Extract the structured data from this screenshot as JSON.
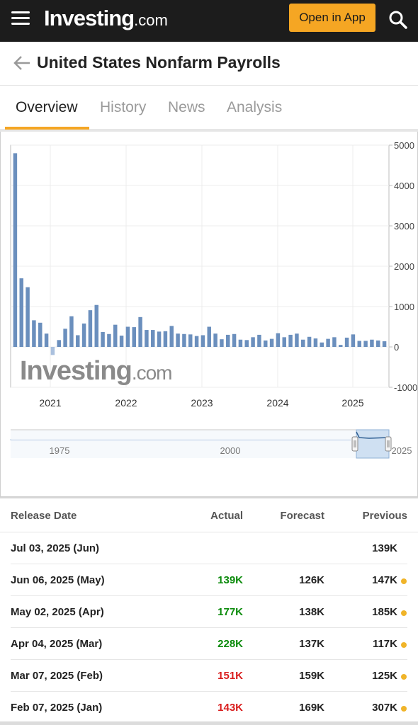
{
  "header": {
    "logo_brand": "Investing",
    "logo_tld": ".com",
    "open_app_label": "Open in App"
  },
  "page": {
    "title": "United States Nonfarm Payrolls"
  },
  "tabs": [
    {
      "label": "Overview",
      "active": true
    },
    {
      "label": "History",
      "active": false
    },
    {
      "label": "News",
      "active": false
    },
    {
      "label": "Analysis",
      "active": false
    }
  ],
  "colors": {
    "accent": "#f5a623",
    "bar": "#6b8fbd",
    "up": "#0a8a0a",
    "down": "#d91e1e"
  },
  "chart_data": {
    "type": "bar",
    "watermark": "Investing.com",
    "x_ticks": [
      "2021",
      "2022",
      "2023",
      "2024",
      "2025"
    ],
    "y_ticks": [
      "5000",
      "4000",
      "3000",
      "2000",
      "1000",
      "0",
      "-1000"
    ],
    "ylim": [
      -1000,
      5000
    ],
    "grid": true,
    "values": [
      4800,
      1700,
      1480,
      660,
      600,
      330,
      -200,
      170,
      450,
      760,
      290,
      580,
      910,
      1040,
      370,
      320,
      550,
      280,
      500,
      490,
      740,
      420,
      420,
      380,
      390,
      520,
      330,
      320,
      310,
      270,
      290,
      500,
      330,
      190,
      300,
      320,
      180,
      170,
      240,
      300,
      160,
      200,
      340,
      240,
      300,
      330,
      180,
      250,
      210,
      110,
      200,
      240,
      50,
      230,
      310,
      150,
      150,
      180,
      160,
      140
    ],
    "navigator": {
      "ticks": [
        "1975",
        "2000",
        "2025"
      ]
    }
  },
  "table": {
    "headers": {
      "date": "Release Date",
      "actual": "Actual",
      "forecast": "Forecast",
      "previous": "Previous"
    },
    "rows": [
      {
        "date": "Jul 03, 2025 (Jun)",
        "actual": "",
        "actual_trend": "",
        "forecast": "",
        "previous": "139K",
        "revised": false
      },
      {
        "date": "Jun 06, 2025 (May)",
        "actual": "139K",
        "actual_trend": "up",
        "forecast": "126K",
        "previous": "147K",
        "revised": true
      },
      {
        "date": "May 02, 2025 (Apr)",
        "actual": "177K",
        "actual_trend": "up",
        "forecast": "138K",
        "previous": "185K",
        "revised": true
      },
      {
        "date": "Apr 04, 2025 (Mar)",
        "actual": "228K",
        "actual_trend": "up",
        "forecast": "137K",
        "previous": "117K",
        "revised": true
      },
      {
        "date": "Mar 07, 2025 (Feb)",
        "actual": "151K",
        "actual_trend": "down",
        "forecast": "159K",
        "previous": "125K",
        "revised": true
      },
      {
        "date": "Feb 07, 2025 (Jan)",
        "actual": "143K",
        "actual_trend": "down",
        "forecast": "169K",
        "previous": "307K",
        "revised": true
      }
    ]
  }
}
